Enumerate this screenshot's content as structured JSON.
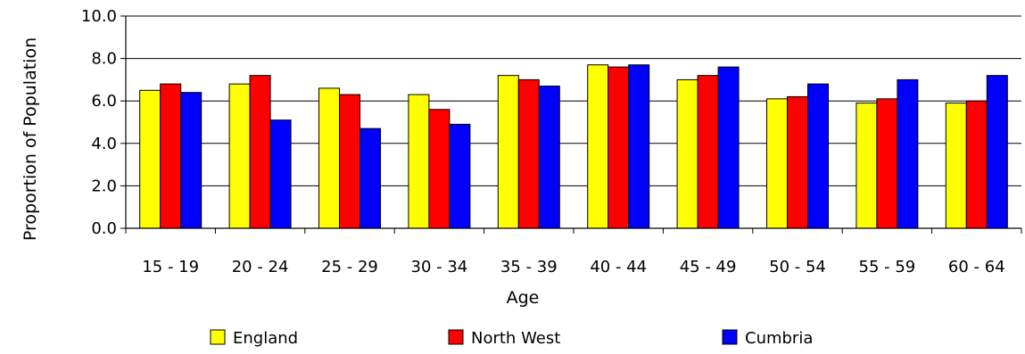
{
  "chart_data": {
    "type": "bar",
    "xlabel": "Age",
    "ylabel": "Proportion of Population",
    "ylim": [
      0,
      10
    ],
    "yticks": [
      "0.0",
      "2.0",
      "4.0",
      "6.0",
      "8.0",
      "10.0"
    ],
    "grid": true,
    "legend_position": "bottom",
    "categories": [
      "15 - 19",
      "20 - 24",
      "25 - 29",
      "30 - 34",
      "35 - 39",
      "40 - 44",
      "45 - 49",
      "50 - 54",
      "55 - 59",
      "60 - 64"
    ],
    "series": [
      {
        "name": "England",
        "color": "#ffff00",
        "values": [
          6.5,
          6.8,
          6.6,
          6.3,
          7.2,
          7.7,
          7.0,
          6.1,
          5.9,
          5.9
        ]
      },
      {
        "name": "North West",
        "color": "#ff0000",
        "values": [
          6.8,
          7.2,
          6.3,
          5.6,
          7.0,
          7.6,
          7.2,
          6.2,
          6.1,
          6.0
        ]
      },
      {
        "name": "Cumbria",
        "color": "#0000ff",
        "values": [
          6.4,
          5.1,
          4.7,
          4.9,
          6.7,
          7.7,
          7.6,
          6.8,
          7.0,
          7.2
        ]
      }
    ]
  }
}
